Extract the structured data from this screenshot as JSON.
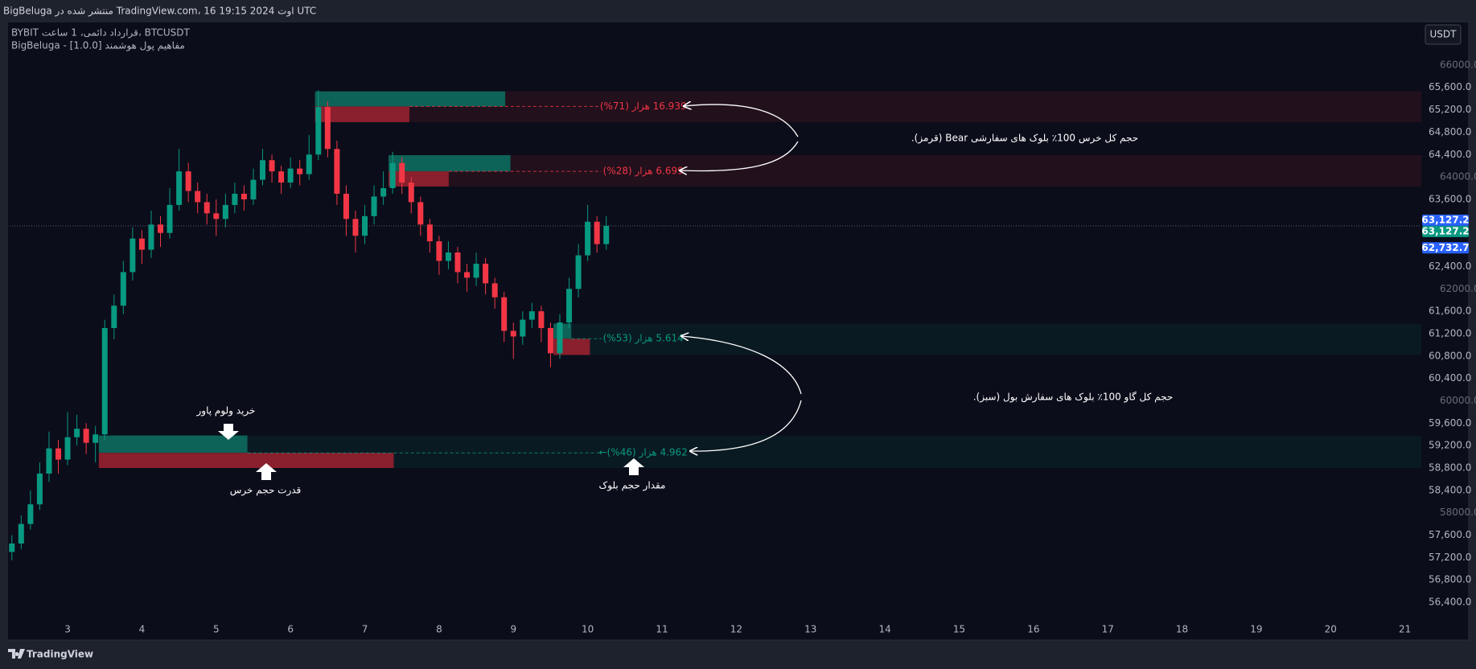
{
  "header": {
    "published": "BigBeluga منتشر شده در TradingView.com، 16 اوت 2024 19:15 UTC",
    "symbol": "BYBIT قرارداد دائمی، 1 ساعت، BTCUSDT",
    "indicator": "BigBeluga - مفاهیم پول هوشمند [1.0.0]",
    "currency": "USDT"
  },
  "chart_data": {
    "type": "candlestick",
    "x": [
      2.25,
      2.375,
      2.5,
      2.625,
      2.75,
      2.875,
      3,
      3.125,
      3.25,
      3.375,
      3.5,
      3.625,
      3.75,
      3.875,
      4,
      4.125,
      4.25,
      4.375,
      4.5,
      4.625,
      4.75,
      4.875,
      5,
      5.125,
      5.25,
      5.375,
      5.5,
      5.625,
      5.75,
      5.875,
      6,
      6.125,
      6.25,
      6.375,
      6.5,
      6.625,
      6.75,
      6.875,
      7,
      7.125,
      7.25,
      7.375,
      7.5,
      7.625,
      7.75,
      7.875,
      8,
      8.125,
      8.25,
      8.375,
      8.5,
      8.625,
      8.75,
      8.875,
      9,
      9.125,
      9.25,
      9.375,
      9.5,
      9.625,
      9.75,
      9.875,
      10,
      10.125,
      10.25
    ],
    "open": [
      57300,
      57450,
      57800,
      58150,
      58700,
      59150,
      58950,
      59350,
      59500,
      59250,
      59400,
      61300,
      61700,
      62300,
      62900,
      62700,
      63150,
      63000,
      63500,
      64100,
      63750,
      63550,
      63350,
      63250,
      63500,
      63700,
      63600,
      63950,
      64300,
      64100,
      63900,
      64150,
      64050,
      64400,
      65250,
      64500,
      63700,
      63250,
      62950,
      63300,
      63650,
      63800,
      64250,
      63900,
      63550,
      63150,
      62850,
      62500,
      62650,
      62300,
      62200,
      62450,
      62100,
      61850,
      61250,
      61150,
      61450,
      61600,
      61300,
      60850,
      61400,
      62000,
      62600,
      63200,
      62800
    ],
    "high": [
      57600,
      57950,
      58400,
      58900,
      59450,
      59300,
      59800,
      59750,
      59600,
      59550,
      61450,
      61900,
      62500,
      63100,
      63050,
      63400,
      63300,
      63800,
      64500,
      64250,
      63900,
      63700,
      63600,
      63700,
      63900,
      63850,
      64150,
      64500,
      64400,
      64200,
      64350,
      64300,
      64750,
      65550,
      65350,
      64650,
      63850,
      63400,
      63500,
      63850,
      64100,
      64450,
      64350,
      64000,
      63650,
      63250,
      62950,
      62850,
      62750,
      62450,
      62650,
      62550,
      62200,
      61950,
      61400,
      61600,
      61750,
      61700,
      61400,
      61550,
      62200,
      62800,
      63500,
      63300,
      63300
    ],
    "low": [
      57150,
      57350,
      57700,
      58050,
      58550,
      58700,
      58850,
      59200,
      59050,
      58900,
      59300,
      61100,
      61550,
      62150,
      62450,
      62550,
      62750,
      62900,
      63400,
      63550,
      63350,
      63150,
      62950,
      63100,
      63350,
      63400,
      63500,
      63850,
      63900,
      63700,
      63800,
      63850,
      63950,
      64300,
      64350,
      63500,
      62950,
      62650,
      62800,
      63150,
      63500,
      63700,
      63700,
      63350,
      62950,
      62650,
      62250,
      62350,
      62100,
      61950,
      62050,
      61900,
      61650,
      61050,
      60750,
      61000,
      61300,
      61050,
      60600,
      60750,
      61300,
      61850,
      62500,
      62650,
      62700
    ],
    "close": [
      57450,
      57800,
      58150,
      58700,
      59150,
      58950,
      59350,
      59500,
      59250,
      59400,
      61300,
      61700,
      62300,
      62900,
      62700,
      63150,
      63000,
      63500,
      64100,
      63750,
      63550,
      63350,
      63250,
      63500,
      63700,
      63600,
      63950,
      64300,
      64100,
      63900,
      64150,
      64050,
      64400,
      65250,
      64500,
      63700,
      63250,
      62950,
      63300,
      63650,
      63800,
      64250,
      63900,
      63550,
      63150,
      62850,
      62500,
      62650,
      62300,
      62200,
      62450,
      62100,
      61850,
      61250,
      61150,
      61450,
      61600,
      61300,
      60850,
      61400,
      62000,
      62600,
      63200,
      62800,
      63127.2
    ],
    "colors": {
      "up": "#089981",
      "down": "#f23645",
      "buy": "#0d6357",
      "sell": "#8a1f2d",
      "bear_zone": "#22101c",
      "bull_zone": "#0a1a22"
    },
    "xlim": [
      2.22,
      21.22
    ],
    "ylim": [
      56070,
      66760
    ],
    "xticks": [
      3,
      4,
      5,
      6,
      7,
      8,
      9,
      10,
      11,
      12,
      13,
      14,
      15,
      16,
      17,
      18,
      19,
      20,
      21
    ],
    "yticks": [
      {
        "value": 65600,
        "label": "65,600.0"
      },
      {
        "value": 65200,
        "label": "65,200.0"
      },
      {
        "value": 64800,
        "label": "64,800.0"
      },
      {
        "value": 64400,
        "label": "64,400.0"
      },
      {
        "value": 63600,
        "label": "63,600.0"
      },
      {
        "value": 62400,
        "label": "62,400.0"
      },
      {
        "value": 61600,
        "label": "61,600.0"
      },
      {
        "value": 61200,
        "label": "61,200.0"
      },
      {
        "value": 60800,
        "label": "60,800.0"
      },
      {
        "value": 60400,
        "label": "60,400.0"
      },
      {
        "value": 59600,
        "label": "59,600.0"
      },
      {
        "value": 59200,
        "label": "59,200.0"
      },
      {
        "value": 58800,
        "label": "58,800.0"
      },
      {
        "value": 58400,
        "label": "58,400.0"
      },
      {
        "value": 57600,
        "label": "57,600.0"
      },
      {
        "value": 57200,
        "label": "57,200.0"
      },
      {
        "value": 56800,
        "label": "56,800.0"
      },
      {
        "value": 56400,
        "label": "56,400.0"
      }
    ],
    "yticks_minor": [
      {
        "value": 66000,
        "label": "66000.0"
      },
      {
        "value": 64000,
        "label": "64000.0"
      },
      {
        "value": 62000,
        "label": "62000.0"
      },
      {
        "value": 60000,
        "label": "60000.0"
      },
      {
        "value": 58000,
        "label": "58000.0"
      }
    ],
    "price_labels": [
      {
        "value": 63127.2,
        "label": "63,127.2",
        "color": "#2962ff"
      },
      {
        "value": 63127.2,
        "label": "63,127.2",
        "color": "#089981"
      },
      {
        "value": 62732.7,
        "label": "62,732.7",
        "color": "#2962ff"
      }
    ],
    "zones": [
      {
        "kind": "bear",
        "top": 65530,
        "bottom": 64980,
        "x_start": 6.33,
        "buy": {
          "top": 65530,
          "bottom": 65260,
          "x_end": 8.89
        },
        "sell": {
          "top": 65260,
          "bottom": 64980,
          "x_end": 7.6
        },
        "label": "16.939 هزار (71%)"
      },
      {
        "kind": "bear",
        "top": 64390,
        "bottom": 63830,
        "x_start": 7.32,
        "buy": {
          "top": 64390,
          "bottom": 64100,
          "x_end": 8.96
        },
        "sell": {
          "top": 64100,
          "bottom": 63830,
          "x_end": 8.13
        },
        "label": "6.699 هزار (28%)"
      },
      {
        "kind": "bull",
        "top": 61380,
        "bottom": 60820,
        "x_start": 9.54,
        "buy": {
          "top": 61380,
          "bottom": 61110,
          "x_end": 9.78
        },
        "sell": {
          "top": 61110,
          "bottom": 60820,
          "x_end": 10.03
        },
        "label": "5.614 هزار (53%)"
      },
      {
        "kind": "bull",
        "top": 59380,
        "bottom": 58800,
        "x_start": 3.42,
        "buy": {
          "top": 59380,
          "bottom": 59070,
          "x_end": 5.42
        },
        "sell": {
          "top": 59070,
          "bottom": 58800,
          "x_end": 7.39
        },
        "label": "4.962 هزار (46%)←"
      }
    ],
    "annotations": [
      "حجم کل خرس 100٪ بلوک های سفارشی Bear (قرمز).",
      "حجم کل گاو 100٪ بلوک های سفارش بول (سبز).",
      "خرید ولوم پاور",
      "قدرت حجم خرس",
      "مقدار حجم بلوک"
    ]
  },
  "footer": {
    "brand": "TradingView"
  }
}
